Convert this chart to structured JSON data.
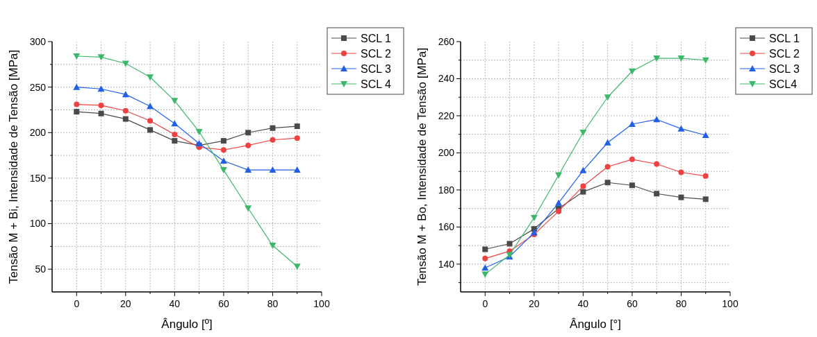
{
  "chart_data": [
    {
      "type": "line",
      "xlabel": "Ângulo [º]",
      "ylabel": "Tensão M + Bi, Intensidade de Tensão [MPa]",
      "x": [
        0,
        10,
        20,
        30,
        40,
        50,
        60,
        70,
        80,
        90
      ],
      "xlim": [
        -10,
        100
      ],
      "xticks": [
        0,
        {
          "value": 10,
          "label": null
        },
        20,
        {
          "value": 30,
          "label": null
        },
        40,
        {
          "value": 50,
          "label": null
        },
        60,
        {
          "value": 70,
          "label": null
        },
        80,
        {
          "value": 90,
          "label": null
        },
        100
      ],
      "ylim": [
        25,
        300
      ],
      "yticks": [
        50,
        {
          "value": 75,
          "label": null
        },
        100,
        {
          "value": 125,
          "label": null
        },
        150,
        {
          "value": 175,
          "label": null
        },
        200,
        {
          "value": 225,
          "label": null
        },
        250,
        {
          "value": 275,
          "label": null
        },
        300
      ],
      "grid": true,
      "legend": "top right",
      "series": [
        {
          "name": "SCL 1",
          "color": "#4a4a4a",
          "marker": "square",
          "values": [
            223,
            221,
            215,
            203,
            191,
            186,
            191,
            200,
            205,
            207
          ]
        },
        {
          "name": "SCL 2",
          "color": "#f04040",
          "marker": "circle",
          "values": [
            231,
            230,
            224,
            213,
            198,
            184,
            181,
            186,
            192,
            194
          ]
        },
        {
          "name": "SCL 3",
          "color": "#2060e8",
          "marker": "triangle",
          "values": [
            250,
            248,
            242,
            229,
            210,
            188,
            169,
            159,
            159,
            159
          ]
        },
        {
          "name": "SCL 4",
          "color": "#3cb86a",
          "marker": "triangle-down",
          "values": [
            284,
            283,
            276,
            261,
            235,
            201,
            159,
            117,
            76,
            53
          ]
        }
      ]
    },
    {
      "type": "line",
      "xlabel": "Ângulo [°]",
      "ylabel": "Tensão M + Bo, Intensidade de Tensão [MPa]",
      "x": [
        0,
        10,
        20,
        30,
        40,
        50,
        60,
        70,
        80,
        90
      ],
      "xlim": [
        -10,
        100
      ],
      "xticks": [
        0,
        {
          "value": 10,
          "label": null
        },
        20,
        {
          "value": 30,
          "label": null
        },
        40,
        {
          "value": 50,
          "label": null
        },
        60,
        {
          "value": 70,
          "label": null
        },
        80,
        {
          "value": 90,
          "label": null
        },
        100
      ],
      "ylim": [
        125,
        260
      ],
      "yticks": [
        {
          "value": 130,
          "label": null
        },
        140,
        {
          "value": 150,
          "label": null
        },
        160,
        {
          "value": 170,
          "label": null
        },
        180,
        {
          "value": 190,
          "label": null
        },
        200,
        {
          "value": 210,
          "label": null
        },
        220,
        {
          "value": 230,
          "label": null
        },
        240,
        {
          "value": 250,
          "label": null
        },
        260
      ],
      "grid": true,
      "legend": "top right",
      "series": [
        {
          "name": "SCL 1",
          "color": "#4a4a4a",
          "marker": "square",
          "values": [
            148,
            151,
            159,
            170,
            179,
            184,
            182.5,
            178,
            176,
            175
          ]
        },
        {
          "name": "SCL 2",
          "color": "#f04040",
          "marker": "circle",
          "values": [
            143,
            147,
            156,
            168.5,
            182,
            192.5,
            196.5,
            194,
            189.5,
            187.5
          ]
        },
        {
          "name": "SCL 3",
          "color": "#2060e8",
          "marker": "triangle",
          "values": [
            138,
            144,
            157,
            173,
            190.5,
            205.5,
            215.5,
            218,
            213,
            209.5
          ]
        },
        {
          "name": "SCL4",
          "color": "#3cb86a",
          "marker": "triangle-down",
          "values": [
            134.5,
            145,
            165,
            188,
            211,
            230,
            244,
            251,
            251,
            250
          ]
        }
      ]
    }
  ]
}
